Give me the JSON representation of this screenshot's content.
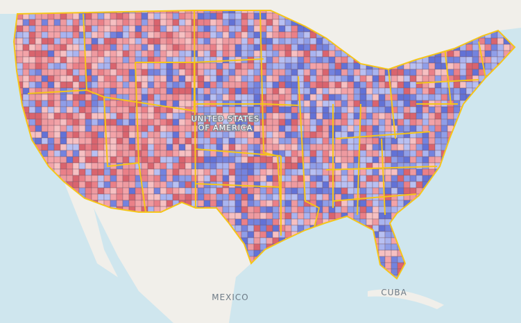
{
  "labels": {
    "country": [
      "UNITED STATES",
      "OF AMERICA"
    ],
    "mexico": "MEXICO",
    "cuba": "CUBA"
  }
}
